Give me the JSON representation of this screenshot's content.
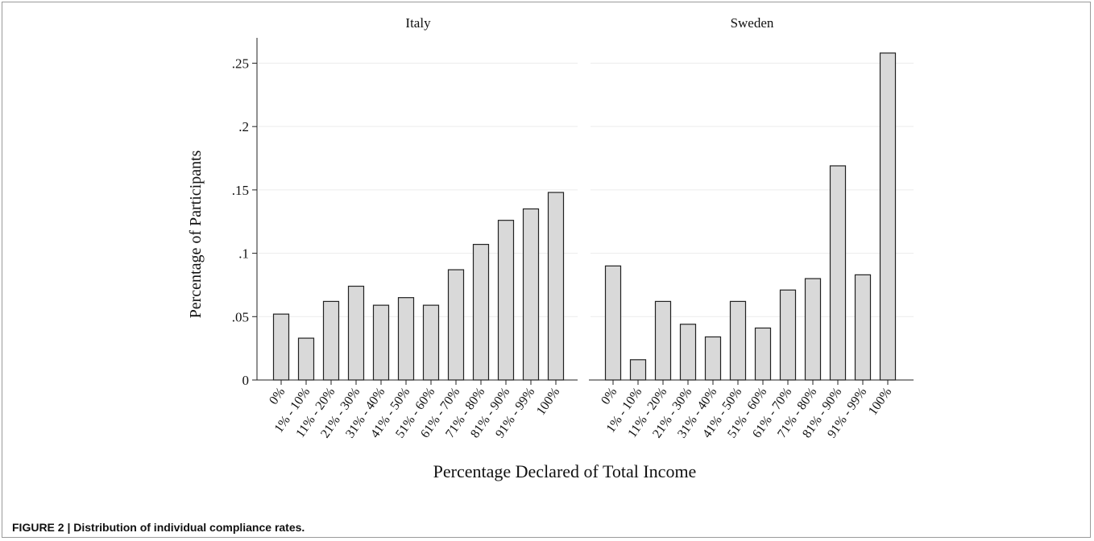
{
  "figure": {
    "caption": "FIGURE 2 | Distribution of individual compliance rates."
  },
  "chart_data": {
    "type": "bar",
    "ylabel": "Percentage of Participants",
    "xlabel": "Percentage Declared of Total Income",
    "ylim": [
      0,
      0.27
    ],
    "yticks": [
      0,
      0.05,
      0.1,
      0.15,
      0.2,
      0.25
    ],
    "ytick_labels": [
      "0",
      ".05",
      ".1",
      ".15",
      ".2",
      ".25"
    ],
    "grid": true,
    "categories": [
      "0%",
      "1% - 10%",
      "11% - 20%",
      "21% - 30%",
      "31% - 40%",
      "41% - 50%",
      "51% - 60%",
      "61% - 70%",
      "71% - 80%",
      "81% - 90%",
      "91% - 99%",
      "100%"
    ],
    "panels": [
      {
        "title": "Italy",
        "values": [
          0.052,
          0.033,
          0.062,
          0.074,
          0.059,
          0.065,
          0.059,
          0.087,
          0.107,
          0.126,
          0.135,
          0.148
        ]
      },
      {
        "title": "Sweden",
        "values": [
          0.09,
          0.016,
          0.062,
          0.044,
          0.034,
          0.062,
          0.041,
          0.071,
          0.08,
          0.169,
          0.083,
          0.258
        ]
      }
    ],
    "colors": {
      "bar_fill": "#d9d9d9",
      "bar_stroke": "#222222",
      "grid": "#ececec",
      "axis": "#222222"
    }
  }
}
